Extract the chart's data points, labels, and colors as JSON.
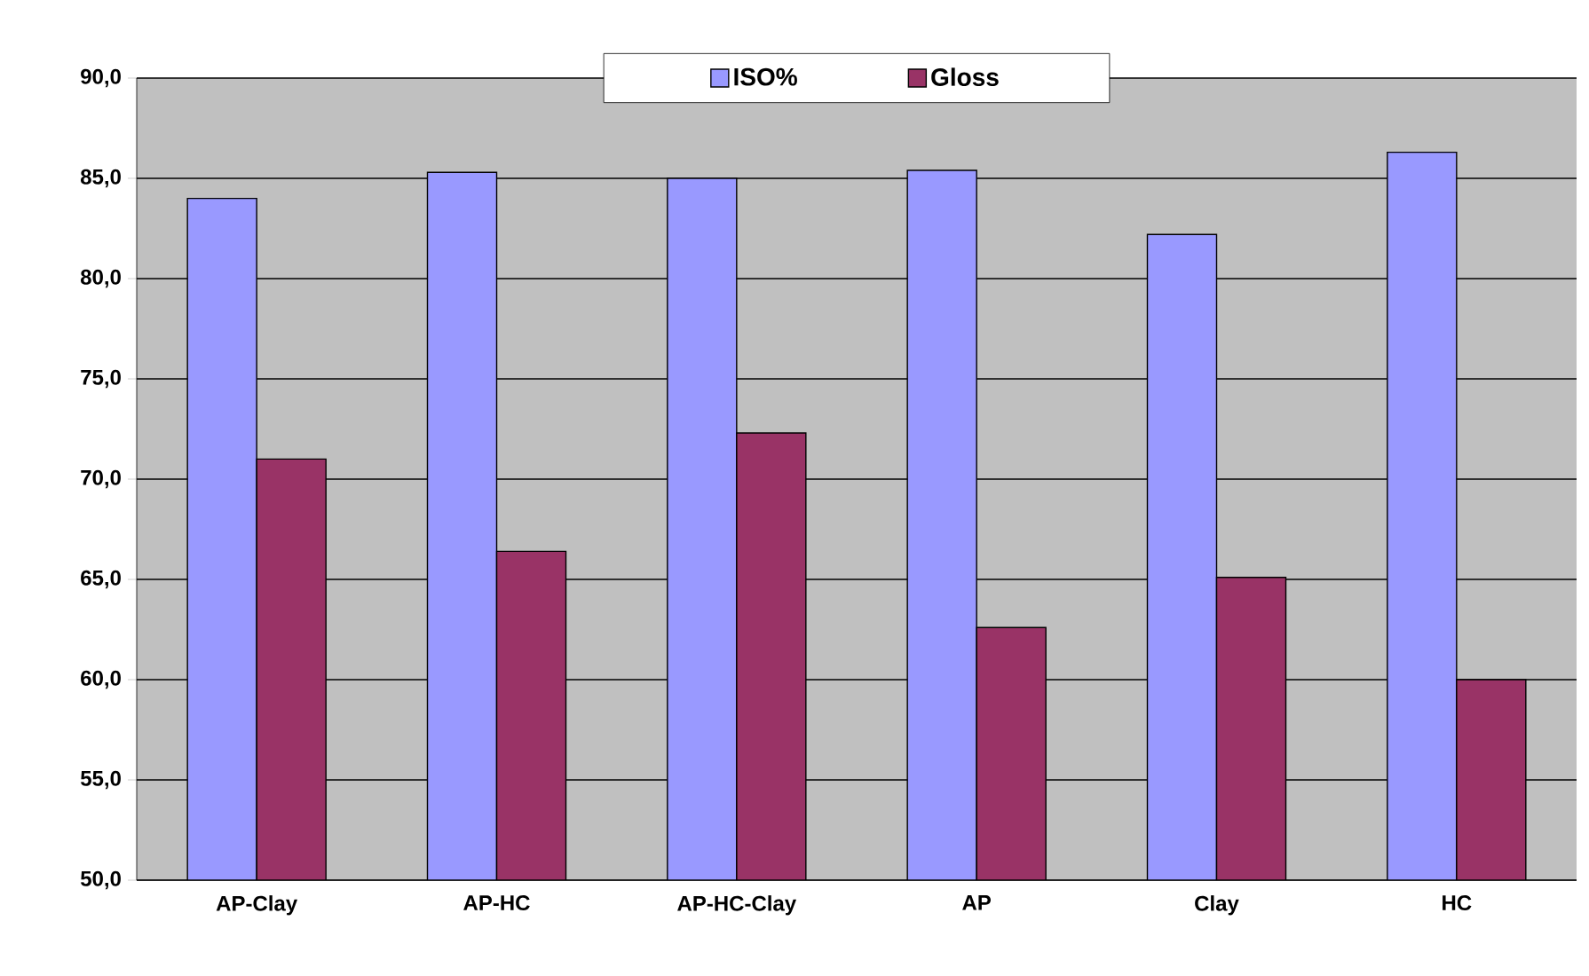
{
  "chart_data": {
    "type": "bar",
    "categories": [
      "AP-Clay",
      "AP-HC",
      "AP-HC-Clay",
      "AP",
      "Clay",
      "HC"
    ],
    "series": [
      {
        "name": "ISO%",
        "color": "#9999ff",
        "values": [
          84.0,
          85.3,
          85.0,
          85.4,
          82.2,
          86.3
        ]
      },
      {
        "name": "Gloss",
        "color": "#993366",
        "values": [
          71.0,
          66.4,
          72.3,
          62.6,
          65.1,
          60.0
        ]
      }
    ],
    "ylim": [
      50,
      90
    ],
    "yticks": [
      {
        "value": 50,
        "label": "50,0"
      },
      {
        "value": 55,
        "label": "55,0"
      },
      {
        "value": 60,
        "label": "60,0"
      },
      {
        "value": 65,
        "label": "65,0"
      },
      {
        "value": 70,
        "label": "70,0"
      },
      {
        "value": 75,
        "label": "75,0"
      },
      {
        "value": 80,
        "label": "80,0"
      },
      {
        "value": 85,
        "label": "85,0"
      },
      {
        "value": 90,
        "label": "90,0"
      }
    ],
    "grid": "y",
    "legend": "top"
  }
}
